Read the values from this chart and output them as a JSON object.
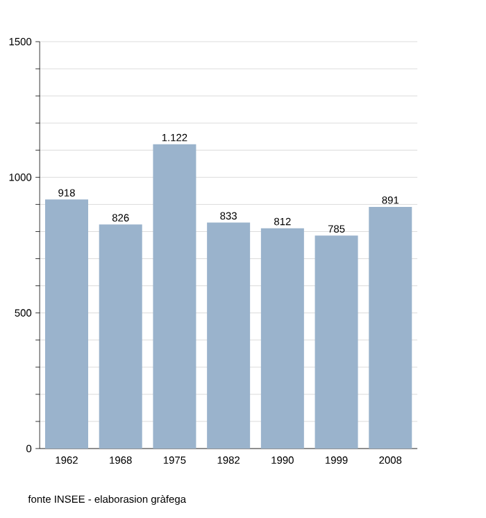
{
  "chart_data": {
    "type": "bar",
    "categories": [
      "1962",
      "1968",
      "1975",
      "1982",
      "1990",
      "1999",
      "2008"
    ],
    "values": [
      918,
      826,
      1122,
      833,
      812,
      785,
      891
    ],
    "value_labels": [
      "918",
      "826",
      "1.122",
      "833",
      "812",
      "785",
      "891"
    ],
    "color": "#9ab3cc",
    "ylim": [
      0,
      1500
    ],
    "yticks": [
      0,
      {
        "value": 100,
        "label": null
      },
      {
        "value": 200,
        "label": null
      },
      {
        "value": 300,
        "label": null
      },
      {
        "value": 400,
        "label": null
      },
      500,
      {
        "value": 600,
        "label": null
      },
      {
        "value": 700,
        "label": null
      },
      {
        "value": 800,
        "label": null
      },
      {
        "value": 900,
        "label": null
      },
      1000,
      {
        "value": 1100,
        "label": null
      },
      {
        "value": 1200,
        "label": null
      },
      {
        "value": 1300,
        "label": null
      },
      {
        "value": 1400,
        "label": null
      },
      1500
    ],
    "grid": "y",
    "annotations": [
      "fonte INSEE - elaborasion gràfega"
    ]
  }
}
